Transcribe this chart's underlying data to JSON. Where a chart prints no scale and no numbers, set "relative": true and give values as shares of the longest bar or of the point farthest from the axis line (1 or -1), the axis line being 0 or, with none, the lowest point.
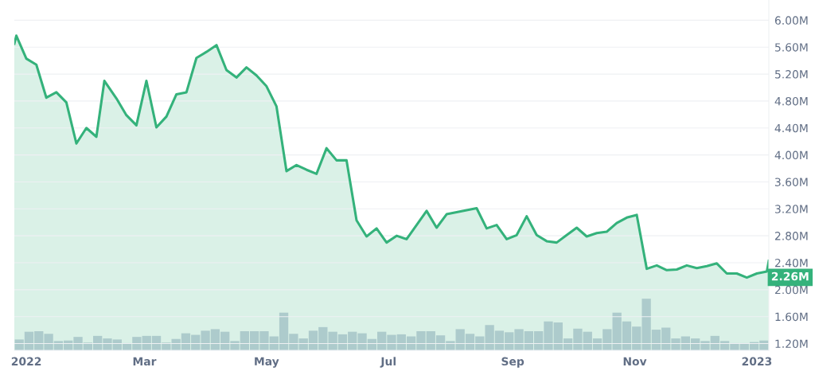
{
  "chart_data": [
    {
      "type": "line",
      "series": [
        {
          "type": "area",
          "color": "#34b27b",
          "x": [
            "2021-12-26",
            "2021-12-27",
            "2022-01-01",
            "2022-01-06",
            "2022-01-11",
            "2022-01-16",
            "2022-01-21",
            "2022-01-26",
            "2022-01-31",
            "2022-02-05",
            "2022-02-09",
            "2022-02-15",
            "2022-02-20",
            "2022-02-25",
            "2022-03-02",
            "2022-03-07",
            "2022-03-12",
            "2022-03-17",
            "2022-03-22",
            "2022-03-27",
            "2022-04-01",
            "2022-04-06",
            "2022-04-11",
            "2022-04-16",
            "2022-04-21",
            "2022-04-26",
            "2022-05-01",
            "2022-05-06",
            "2022-05-11",
            "2022-05-16",
            "2022-05-21",
            "2022-05-26",
            "2022-05-31",
            "2022-06-05",
            "2022-06-10",
            "2022-06-15",
            "2022-06-20",
            "2022-06-25",
            "2022-06-30",
            "2022-07-05",
            "2022-07-10",
            "2022-07-15",
            "2022-07-20",
            "2022-07-25",
            "2022-07-30",
            "2022-08-14",
            "2022-08-19",
            "2022-08-24",
            "2022-08-29",
            "2022-09-03",
            "2022-09-08",
            "2022-09-13",
            "2022-09-18",
            "2022-09-23",
            "2022-09-28",
            "2022-10-03",
            "2022-10-08",
            "2022-10-13",
            "2022-10-18",
            "2022-10-23",
            "2022-10-28",
            "2022-11-02",
            "2022-11-07",
            "2022-11-12",
            "2022-11-17",
            "2022-11-22",
            "2022-11-27",
            "2022-12-02",
            "2022-12-07",
            "2022-12-12",
            "2022-12-17",
            "2022-12-22",
            "2022-12-27",
            "2023-01-01",
            "2023-01-06",
            "2023-01-07"
          ],
          "values": [
            5.65,
            5.77,
            5.43,
            5.34,
            4.85,
            4.93,
            4.78,
            4.17,
            4.4,
            4.27,
            5.1,
            4.84,
            4.59,
            4.44,
            5.1,
            4.41,
            4.57,
            4.9,
            4.93,
            5.44,
            5.53,
            5.63,
            5.26,
            5.15,
            5.3,
            5.18,
            5.02,
            4.72,
            3.76,
            3.85,
            3.78,
            3.72,
            4.1,
            3.92,
            3.92,
            3.03,
            2.79,
            2.91,
            2.7,
            2.8,
            2.75,
            2.96,
            3.17,
            2.92,
            3.12,
            3.21,
            2.91,
            2.96,
            2.75,
            2.81,
            3.09,
            2.81,
            2.72,
            2.7,
            2.81,
            2.92,
            2.79,
            2.84,
            2.86,
            2.99,
            3.07,
            3.11,
            2.31,
            2.36,
            2.29,
            2.3,
            2.36,
            2.32,
            2.35,
            2.39,
            2.24,
            2.24,
            2.18,
            2.24,
            2.27,
            2.43
          ]
        }
      ],
      "xlim": [
        "2021-12-26",
        "2023-01-07"
      ],
      "xticks": [
        {
          "value": "2022-01-01",
          "label": "2022"
        },
        {
          "value": "2022-03-01",
          "label": "Mar"
        },
        {
          "value": "2022-05-01",
          "label": "May"
        },
        {
          "value": "2022-07-01",
          "label": "Jul"
        },
        {
          "value": "2022-09-01",
          "label": "Sep"
        },
        {
          "value": "2022-11-01",
          "label": "Nov"
        },
        {
          "value": "2023-01-01",
          "label": "2023"
        }
      ],
      "ylim": [
        1.1,
        6.3
      ],
      "yticks": [
        {
          "value": 1.2,
          "label": "1.20M"
        },
        {
          "value": 1.6,
          "label": "1.60M"
        },
        {
          "value": 2.0,
          "label": "2.00M"
        },
        {
          "value": 2.4,
          "label": "2.40M"
        },
        {
          "value": 2.8,
          "label": "2.80M"
        },
        {
          "value": 3.2,
          "label": "3.20M"
        },
        {
          "value": 3.6,
          "label": "3.60M"
        },
        {
          "value": 4.0,
          "label": "4.00M"
        },
        {
          "value": 4.4,
          "label": "4.40M"
        },
        {
          "value": 4.8,
          "label": "4.80M"
        },
        {
          "value": 5.2,
          "label": "5.20M"
        },
        {
          "value": 5.6,
          "label": "5.60M"
        },
        {
          "value": 6.0,
          "label": "6.00M"
        }
      ],
      "grid": "y",
      "annotations": [
        "2.26M"
      ]
    },
    {
      "type": "bar",
      "relative": true,
      "color": "#c9d1de",
      "categories": [
        null,
        null,
        null,
        null,
        null,
        null,
        null,
        null,
        null,
        null,
        null,
        null,
        null,
        null,
        null,
        null,
        null,
        null,
        null,
        null,
        null,
        null,
        null,
        null,
        null,
        null,
        null,
        null,
        null,
        null,
        null,
        null,
        null,
        null,
        null,
        null,
        null,
        null,
        null,
        null,
        null,
        null,
        null,
        null,
        null,
        null,
        null,
        null,
        null,
        null,
        null,
        null,
        null,
        null,
        null,
        null,
        null,
        null,
        null,
        null,
        null,
        null,
        null,
        null,
        null,
        null,
        null,
        null,
        null,
        null,
        null,
        null,
        null,
        null,
        null,
        null,
        null
      ],
      "values": [
        0.21,
        0.36,
        0.37,
        0.32,
        0.18,
        0.19,
        0.26,
        0.15,
        0.28,
        0.23,
        0.21,
        0.14,
        0.26,
        0.28,
        0.28,
        0.15,
        0.22,
        0.33,
        0.3,
        0.38,
        0.41,
        0.36,
        0.18,
        0.37,
        0.37,
        0.37,
        0.27,
        0.73,
        0.32,
        0.23,
        0.38,
        0.45,
        0.36,
        0.31,
        0.36,
        0.33,
        0.22,
        0.36,
        0.3,
        0.31,
        0.27,
        0.37,
        0.37,
        0.29,
        0.18,
        0.41,
        0.32,
        0.27,
        0.49,
        0.38,
        0.35,
        0.41,
        0.37,
        0.37,
        0.56,
        0.54,
        0.23,
        0.42,
        0.36,
        0.23,
        0.41,
        0.73,
        0.56,
        0.46,
        1,
        0.4,
        0.44,
        0.23,
        0.27,
        0.23,
        0.18,
        0.28,
        0.18,
        0.14,
        0.14,
        0.16,
        0.19
      ]
    }
  ]
}
